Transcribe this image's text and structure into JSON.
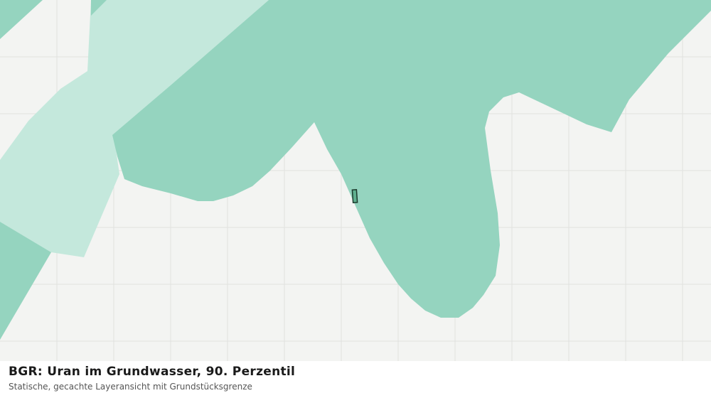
{
  "title": "BGR: Uran im Grundwasser, 90. Perzentil",
  "subtitle": "Statische, gecachte Layeransicht mit Grundstücksgrenze"
}
